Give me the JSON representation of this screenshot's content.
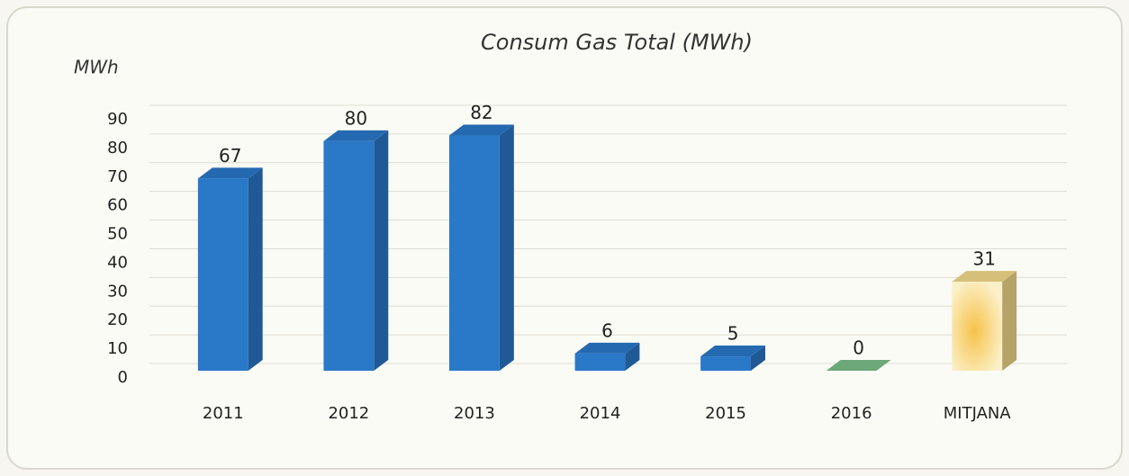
{
  "chart_data": {
    "type": "bar",
    "title": "Consum Gas Total (MWh)",
    "y_label": "MWh",
    "categories": [
      "2011",
      "2012",
      "2013",
      "2014",
      "2015",
      "2016",
      "MITJANA"
    ],
    "values": [
      67,
      80,
      82,
      6,
      5,
      0,
      31
    ],
    "colors": [
      "#2a78c8",
      "#2a78c8",
      "#2a78c8",
      "#2a78c8",
      "#2a78c8",
      "#7cbf8a",
      "#f3d98a"
    ],
    "ylim": [
      0,
      90
    ],
    "yticks": [
      0,
      10,
      20,
      30,
      40,
      50,
      60,
      70,
      80,
      90
    ],
    "grid": true
  }
}
